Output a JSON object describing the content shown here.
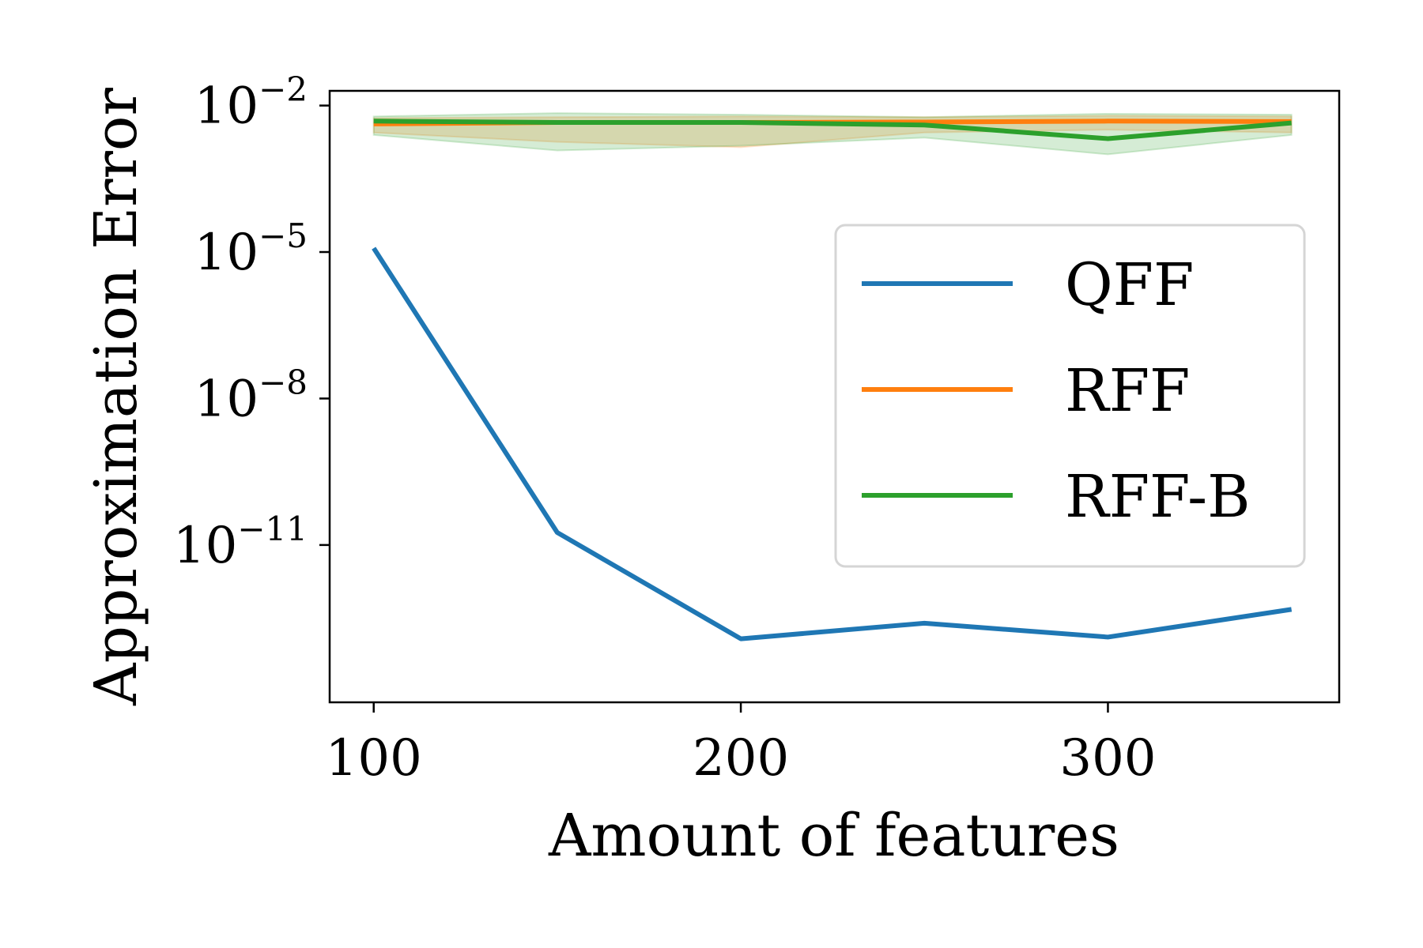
{
  "chart_data": {
    "type": "line",
    "title": "",
    "xlabel": "Amount of features",
    "ylabel": "Approximation Error",
    "yscale": "log",
    "xlim": [
      88,
      363
    ],
    "ylim": [
      6e-15,
      0.02
    ],
    "x": [
      100,
      150,
      200,
      250,
      300,
      350
    ],
    "x_ticks": [
      {
        "value": 100,
        "label": "100"
      },
      {
        "value": 200,
        "label": "200"
      },
      {
        "value": 300,
        "label": "300"
      }
    ],
    "y_ticks": [
      {
        "value": 0.01,
        "base": "10",
        "exp": "−2"
      },
      {
        "value": 1e-05,
        "base": "10",
        "exp": "−5"
      },
      {
        "value": 1e-08,
        "base": "10",
        "exp": "−8"
      },
      {
        "value": 1e-11,
        "base": "10",
        "exp": "−11"
      }
    ],
    "grid": false,
    "legend_position": "right",
    "series": [
      {
        "name": "QFF",
        "color": "#1f77b4",
        "values": [
          1.2e-05,
          1.8e-11,
          1.2e-13,
          2.5e-13,
          1.3e-13,
          4.8e-13
        ]
      },
      {
        "name": "RFF",
        "color": "#ff7f0e",
        "values": [
          0.0042,
          0.0045,
          0.0045,
          0.0046,
          0.0048,
          0.0047
        ],
        "band_lower": [
          0.0028,
          0.0018,
          0.0014,
          0.0028,
          0.0032,
          0.0028
        ],
        "band_upper": [
          0.0055,
          0.0058,
          0.006,
          0.0058,
          0.0062,
          0.006
        ]
      },
      {
        "name": "RFF-B",
        "color": "#2ca02c",
        "values": [
          0.0048,
          0.0045,
          0.0045,
          0.004,
          0.0021,
          0.0044
        ],
        "band_lower": [
          0.0025,
          0.0012,
          0.0015,
          0.0022,
          0.001,
          0.0025
        ],
        "band_upper": [
          0.006,
          0.007,
          0.0065,
          0.0058,
          0.0068,
          0.0065
        ]
      }
    ]
  }
}
